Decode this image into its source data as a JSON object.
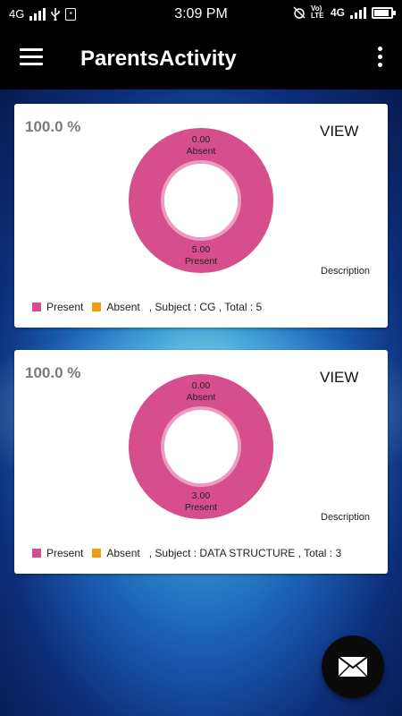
{
  "status_bar": {
    "network_left": "4G",
    "time": "3:09 PM",
    "network_right": "4G",
    "volte": "Vo) LTE"
  },
  "app_bar": {
    "title": "ParentsActivity"
  },
  "colors": {
    "present": "#d64f8c",
    "absent": "#f39c12",
    "app_bar": "#000000"
  },
  "cards": [
    {
      "percentage": "100.0 %",
      "view_label": "VIEW",
      "description_label": "Description",
      "absent_value": "0.00",
      "absent_label": "Absent",
      "present_value": "5.00",
      "present_label": "Present",
      "legend_present": "Present",
      "legend_absent": "Absent",
      "subject_text": ", Subject : CG ,  Total : 5",
      "present_fraction": 1.0
    },
    {
      "percentage": "100.0 %",
      "view_label": "VIEW",
      "description_label": "Description",
      "absent_value": "0.00",
      "absent_label": "Absent",
      "present_value": "3.00",
      "present_label": "Present",
      "legend_present": "Present",
      "legend_absent": "Absent",
      "subject_text": ", Subject : DATA STRUCTURE ,  Total : 3",
      "present_fraction": 1.0
    }
  ]
}
